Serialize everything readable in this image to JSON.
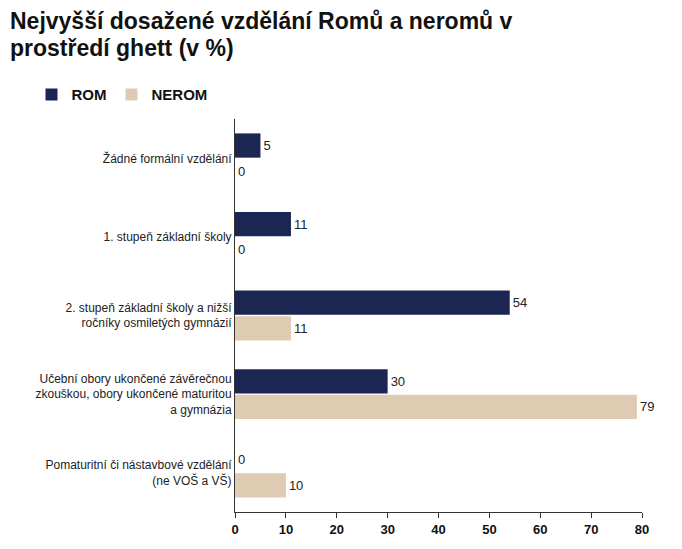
{
  "chart_data": {
    "type": "bar",
    "orientation": "horizontal",
    "title": "Nejvyšší dosažené vzdělání Romů a neromů v prostředí ghett (v %)",
    "categories": [
      "Žádné formální vzdělání",
      "1. stupeň základní školy",
      "2. stupeň základní školy a nižší ročníky osmiletých gymnázií",
      "Učební obory ukončené závěrečnou zkouškou, obory ukončené maturitou a gymnázia",
      "Pomaturitní či nástavbové vzdělání (ne VOŠ a VŠ)"
    ],
    "series": [
      {
        "name": "ROM",
        "color": "#1c2653",
        "values": [
          5,
          11,
          54,
          30,
          0
        ]
      },
      {
        "name": "NEROM",
        "color": "#dfcbb1",
        "values": [
          0,
          0,
          11,
          79,
          10
        ]
      }
    ],
    "xlim": [
      0,
      80
    ],
    "xticks": [
      0,
      10,
      20,
      30,
      40,
      50,
      60,
      70,
      80
    ],
    "grid": false,
    "legend": "top left",
    "data_labels": true
  }
}
